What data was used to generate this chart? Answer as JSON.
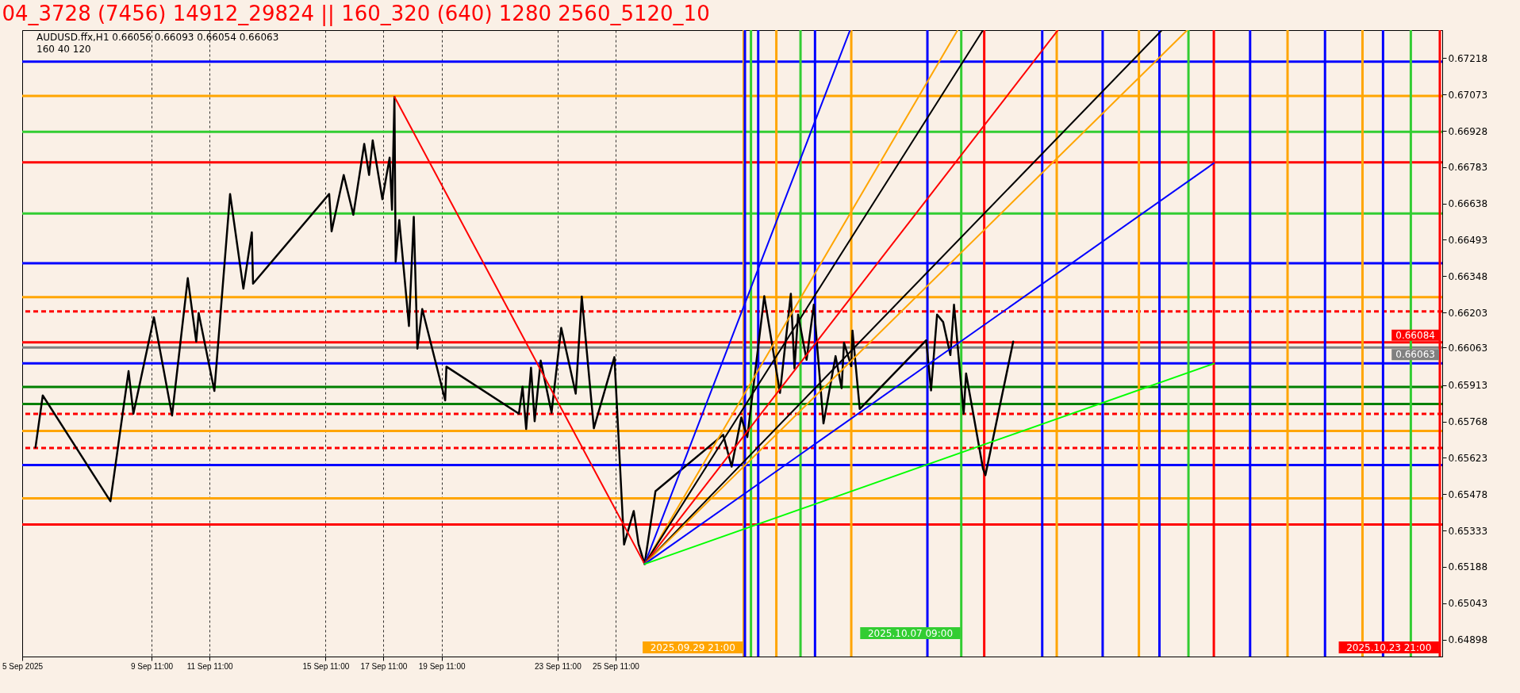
{
  "chart_data": {
    "type": "line",
    "title": "04_3728 (7456) 14912_29824 || 160_320 (640) 1280 2560_5120_10",
    "annotations": [
      "AUDUSD.ffx,H1  0.66056 0.66093 0.66054 0.66063",
      "160  40  120"
    ],
    "xlim": [
      "2025-09-05",
      "2025-10-23T23:00"
    ],
    "ylim": [
      0.6483,
      0.6733
    ],
    "xticks": [
      {
        "value": "2025-09-05",
        "label": "5 Sep 2025"
      },
      {
        "value": "2025-09-09T11:00",
        "label": "9 Sep 11:00"
      },
      {
        "value": "2025-09-11T11:00",
        "label": "11 Sep 11:00"
      },
      {
        "value": "2025-09-15T11:00",
        "label": "15 Sep 11:00"
      },
      {
        "value": "2025-09-17T11:00",
        "label": "17 Sep 11:00"
      },
      {
        "value": "2025-09-19T11:00",
        "label": "19 Sep 11:00"
      },
      {
        "value": "2025-09-23T11:00",
        "label": "23 Sep 11:00"
      },
      {
        "value": "2025-09-25T11:00",
        "label": "25 Sep 11:00"
      }
    ],
    "yticks": [
      0.67218,
      0.67073,
      0.66928,
      0.66783,
      0.66638,
      0.66493,
      0.66348,
      0.66203,
      0.66063,
      0.65913,
      0.65768,
      0.65623,
      0.65478,
      0.65333,
      0.65188,
      0.65043,
      0.64898
    ],
    "grid": "x",
    "series": [
      {
        "color": "#000000",
        "x": [
          "2025-09-05T11:00",
          "2025-09-05T17:00",
          "2025-09-08T01:00",
          "2025-09-08T16:00",
          "2025-09-08T20:00",
          "2025-09-09T13:00",
          "2025-09-10T04:00",
          "2025-09-10T17:00",
          "2025-09-11T00:00",
          "2025-09-11T02:00",
          "2025-09-11T15:00",
          "2025-09-12T04:00",
          "2025-09-12T15:00",
          "2025-09-12T22:00",
          "2025-09-12T23:00",
          "2025-09-15T14:00",
          "2025-09-15T16:00",
          "2025-09-16T02:00",
          "2025-09-16T10:00",
          "2025-09-16T19:00",
          "2025-09-16T23:00",
          "2025-09-17T02:00",
          "2025-09-17T10:00",
          "2025-09-17T16:00",
          "2025-09-17T18:00",
          "2025-09-17T20:00",
          "2025-09-17T21:00",
          "2025-09-18T00:00",
          "2025-09-18T08:00",
          "2025-09-18T12:00",
          "2025-09-18T15:00",
          "2025-09-18T19:00",
          "2025-09-19T14:00",
          "2025-09-19T15:00",
          "2025-09-22T03:00",
          "2025-09-22T06:00",
          "2025-09-22T09:00",
          "2025-09-22T13:00",
          "2025-09-22T16:00",
          "2025-09-22T21:00",
          "2025-09-23T06:00",
          "2025-09-23T14:00",
          "2025-09-24T02:00",
          "2025-09-24T07:00",
          "2025-09-24T17:00",
          "2025-09-25T10:00",
          "2025-09-25T18:00",
          "2025-09-26T02:00",
          "2025-09-26T06:00",
          "2025-09-26T11:00",
          "2025-09-26T20:00",
          "2025-09-29T04:00",
          "2025-09-29T11:00",
          "2025-09-29T19:00",
          "2025-09-30T00:00",
          "2025-09-30T14:00",
          "2025-10-01T03:00",
          "2025-10-01T12:00",
          "2025-10-01T15:00",
          "2025-10-01T18:00",
          "2025-10-02T01:00",
          "2025-10-02T07:00",
          "2025-10-02T15:00",
          "2025-10-03T01:00",
          "2025-10-03T06:00",
          "2025-10-03T08:00",
          "2025-10-03T14:00",
          "2025-10-03T15:00",
          "2025-10-03T21:00",
          "2025-10-06T04:00",
          "2025-10-06T08:00",
          "2025-10-06T13:00",
          "2025-10-06T18:00",
          "2025-10-07T00:00",
          "2025-10-07T03:00",
          "2025-10-07T11:00",
          "2025-10-07T13:00",
          "2025-10-08T03:00",
          "2025-10-08T05:00",
          "2025-10-09T04:00"
        ],
        "values": [
          0.65665,
          0.65872,
          0.6545,
          0.65969,
          0.65799,
          0.66184,
          0.65792,
          0.6634,
          0.66087,
          0.66201,
          0.6589,
          0.66676,
          0.66298,
          0.66523,
          0.66318,
          0.66676,
          0.66527,
          0.66752,
          0.66593,
          0.66876,
          0.66752,
          0.6689,
          0.66655,
          0.66821,
          0.66613,
          0.67063,
          0.66406,
          0.66572,
          0.66149,
          0.66585,
          0.66059,
          0.66217,
          0.65852,
          0.65987,
          0.65799,
          0.65907,
          0.65738,
          0.65983,
          0.65769,
          0.66011,
          0.65803,
          0.66142,
          0.65879,
          0.66267,
          0.65741,
          0.66025,
          0.65277,
          0.65411,
          0.65278,
          0.65199,
          0.6549,
          0.65715,
          0.65588,
          0.65784,
          0.65706,
          0.66268,
          0.65882,
          0.66278,
          0.6598,
          0.66195,
          0.66014,
          0.66234,
          0.6576,
          0.66029,
          0.65901,
          0.66082,
          0.65989,
          0.66131,
          0.65818,
          0.66092,
          0.65892,
          0.66195,
          0.66165,
          0.66033,
          0.66234,
          0.65799,
          0.6596,
          0.65579,
          0.65554,
          0.66087
        ]
      },
      {
        "color": "#ff0000",
        "x": [
          "2025-09-17T20:00",
          "2025-09-26T11:00"
        ],
        "values": [
          0.67064,
          0.65199
        ]
      },
      {
        "color": "#0000ff",
        "x": [
          "2025-09-26T11:00",
          "2025-10-03T13:00"
        ],
        "values": [
          0.65199,
          0.6733
        ]
      },
      {
        "color": "#ffa500",
        "x": [
          "2025-09-26T11:00",
          "2025-10-07T06:00"
        ],
        "values": [
          0.65199,
          0.6733
        ]
      },
      {
        "color": "#000000",
        "x": [
          "2025-09-26T11:00",
          "2025-10-08T03:00"
        ],
        "values": [
          0.65199,
          0.6733
        ]
      },
      {
        "color": "#ff0000",
        "x": [
          "2025-09-26T11:00",
          "2025-10-10T17:00"
        ],
        "values": [
          0.65199,
          0.6733
        ]
      },
      {
        "color": "#000000",
        "x": [
          "2025-09-26T11:00",
          "2025-10-14T07:00"
        ],
        "values": [
          0.65199,
          0.6733
        ]
      },
      {
        "color": "#ffa500",
        "x": [
          "2025-09-26T11:00",
          "2025-10-15T04:00"
        ],
        "values": [
          0.65199,
          0.6733
        ]
      },
      {
        "color": "#0000ff",
        "x": [
          "2025-09-26T11:00",
          "2025-10-16T02:00"
        ],
        "values": [
          0.65199,
          0.66799
        ]
      },
      {
        "color": "#00ff00",
        "x": [
          "2025-09-26T11:00",
          "2025-10-16T02:00"
        ],
        "values": [
          0.65199,
          0.65999
        ]
      }
    ],
    "ref_lines": [
      {
        "axis": "y",
        "value": 0.67204,
        "color": "#0000ff"
      },
      {
        "axis": "y",
        "value": 0.67067,
        "color": "#ffa500"
      },
      {
        "axis": "y",
        "value": 0.66924,
        "color": "#32cd32"
      },
      {
        "axis": "y",
        "value": 0.66802,
        "color": "#ff0000"
      },
      {
        "axis": "y",
        "value": 0.66598,
        "color": "#32cd32"
      },
      {
        "axis": "y",
        "value": 0.664,
        "color": "#0000ff"
      },
      {
        "axis": "y",
        "value": 0.66264,
        "color": "#ffa500"
      },
      {
        "axis": "y",
        "value": 0.66207,
        "color": "#ff0000",
        "line_style": "dashed"
      },
      {
        "axis": "y",
        "value": 0.66084,
        "color": "#ff0000",
        "label": "0.66084"
      },
      {
        "axis": "y",
        "value": 0.66063,
        "color": "#808080",
        "label": "0.66063"
      },
      {
        "axis": "y",
        "value": 0.66,
        "color": "#0000ff"
      },
      {
        "axis": "y",
        "value": 0.65906,
        "color": "#008000"
      },
      {
        "axis": "y",
        "value": 0.65838,
        "color": "#008000"
      },
      {
        "axis": "y",
        "value": 0.65798,
        "color": "#ff0000",
        "line_style": "dashed"
      },
      {
        "axis": "y",
        "value": 0.6573,
        "color": "#ffa500"
      },
      {
        "axis": "y",
        "value": 0.65662,
        "color": "#ff0000",
        "line_style": "dashed"
      },
      {
        "axis": "y",
        "value": 0.65594,
        "color": "#0000ff"
      },
      {
        "axis": "y",
        "value": 0.65461,
        "color": "#ffa500"
      },
      {
        "axis": "y",
        "value": 0.65357,
        "color": "#ff0000"
      },
      {
        "axis": "x",
        "value": "2025-09-29T21:00",
        "color": "#ffa500",
        "label": "2025.09.29 21:00"
      },
      {
        "axis": "x",
        "value": "2025-09-29T22:00",
        "color": "#0000ff"
      },
      {
        "axis": "x",
        "value": "2025-09-30T03:00",
        "color": "#32cd32"
      },
      {
        "axis": "x",
        "value": "2025-09-30T09:00",
        "color": "#0000ff"
      },
      {
        "axis": "x",
        "value": "2025-10-01T00:00",
        "color": "#ffa500"
      },
      {
        "axis": "x",
        "value": "2025-10-01T20:00",
        "color": "#32cd32"
      },
      {
        "axis": "x",
        "value": "2025-10-02T08:00",
        "color": "#0000ff"
      },
      {
        "axis": "x",
        "value": "2025-10-03T14:00",
        "color": "#ffa500"
      },
      {
        "axis": "x",
        "value": "2025-10-06T05:00",
        "color": "#0000ff"
      },
      {
        "axis": "x",
        "value": "2025-10-07T09:00",
        "color": "#32cd32",
        "label": "2025.10.07 09:00"
      },
      {
        "axis": "x",
        "value": "2025-10-08T04:00",
        "color": "#ff0000"
      },
      {
        "axis": "x",
        "value": "2025-10-10T04:00",
        "color": "#0000ff"
      },
      {
        "axis": "x",
        "value": "2025-10-10T16:00",
        "color": "#ffa500"
      },
      {
        "axis": "x",
        "value": "2025-10-12T06:00",
        "color": "#0000ff"
      },
      {
        "axis": "x",
        "value": "2025-10-13T12:00",
        "color": "#ffa500"
      },
      {
        "axis": "x",
        "value": "2025-10-14T05:00",
        "color": "#0000ff"
      },
      {
        "axis": "x",
        "value": "2025-10-15T05:00",
        "color": "#32cd32"
      },
      {
        "axis": "x",
        "value": "2025-10-16T02:00",
        "color": "#ff0000"
      },
      {
        "axis": "x",
        "value": "2025-10-17T08:00",
        "color": "#0000ff"
      },
      {
        "axis": "x",
        "value": "2025-10-18T15:00",
        "color": "#ffa500"
      },
      {
        "axis": "x",
        "value": "2025-10-19T22:00",
        "color": "#0000ff"
      },
      {
        "axis": "x",
        "value": "2025-10-21T05:00",
        "color": "#ffa500"
      },
      {
        "axis": "x",
        "value": "2025-10-21T22:00",
        "color": "#0000ff"
      },
      {
        "axis": "x",
        "value": "2025-10-22T21:00",
        "color": "#32cd32"
      },
      {
        "axis": "x",
        "value": "2025-10-23T21:00",
        "color": "#ff0000",
        "label": "2025.10.23 21:00"
      }
    ]
  }
}
